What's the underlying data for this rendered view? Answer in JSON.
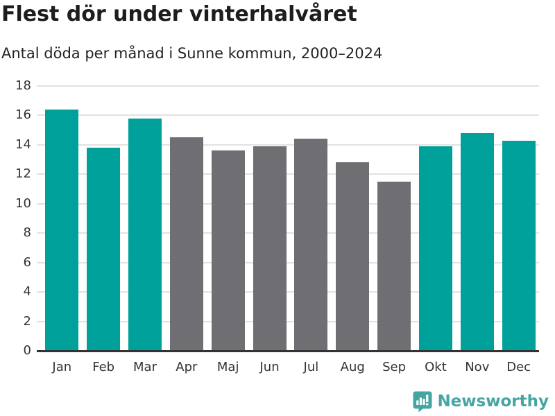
{
  "header": {
    "title": "Flest dör under vinterhalvåret",
    "subtitle": "Antal döda per månad i Sunne kommun, 2000–2024"
  },
  "chart_data": {
    "type": "bar",
    "title": "Flest dör under vinterhalvåret",
    "subtitle": "Antal döda per månad i Sunne kommun, 2000–2024",
    "categories": [
      "Jan",
      "Feb",
      "Mar",
      "Apr",
      "Maj",
      "Jun",
      "Jul",
      "Aug",
      "Sep",
      "Okt",
      "Nov",
      "Dec"
    ],
    "values": [
      16.4,
      13.8,
      15.8,
      14.5,
      13.6,
      13.9,
      14.4,
      12.8,
      11.5,
      13.9,
      14.8,
      14.3
    ],
    "bar_color_keys": [
      "teal",
      "teal",
      "teal",
      "gray",
      "gray",
      "gray",
      "gray",
      "gray",
      "gray",
      "teal",
      "teal",
      "teal"
    ],
    "colors": {
      "teal": "#00a19a",
      "gray": "#6e6e73"
    },
    "xlabel": "",
    "ylabel": "",
    "ylim": [
      0,
      18
    ],
    "yticks": [
      0,
      2,
      4,
      6,
      8,
      10,
      12,
      14,
      16,
      18
    ],
    "grid": true,
    "legend": "none"
  },
  "footer": {
    "brand": "Newsworthy",
    "brand_color": "#45a5a2"
  }
}
